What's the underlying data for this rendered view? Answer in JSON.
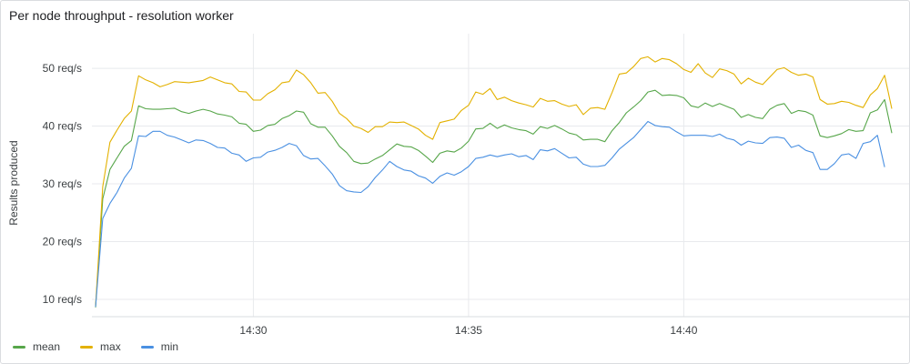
{
  "panel": {
    "title": "Per node throughput - resolution worker"
  },
  "chart_data": {
    "type": "line",
    "title": "Per node throughput - resolution worker",
    "xlabel": "",
    "ylabel": "Results produced",
    "x_ticks": [
      "14:30",
      "14:35",
      "14:40"
    ],
    "y_ticks": [
      "10 req/s",
      "20 req/s",
      "30 req/s",
      "40 req/s",
      "50 req/s"
    ],
    "y_tick_values": [
      10,
      20,
      30,
      40,
      50
    ],
    "ylim": [
      7,
      56
    ],
    "grid": true,
    "legend_position": "bottom-left",
    "sample_interval_seconds": 10,
    "start_time": "14:26:20",
    "series": [
      {
        "name": "mean",
        "color": "#57a64a",
        "values": [
          8.6,
          27.4,
          32.5,
          34.5,
          36.5,
          37.5,
          43.5,
          43.0,
          42.9,
          42.9,
          43.0,
          43.1,
          42.5,
          42.2,
          42.6,
          42.9,
          42.6,
          42.1,
          41.9,
          41.6,
          40.5,
          40.3,
          39.1,
          39.3,
          40.1,
          40.3,
          41.3,
          41.8,
          42.6,
          42.4,
          40.4,
          39.8,
          39.8,
          38.3,
          36.5,
          35.4,
          33.9,
          33.5,
          33.6,
          34.3,
          34.9,
          35.9,
          36.9,
          36.5,
          36.4,
          35.8,
          34.8,
          33.7,
          35.3,
          35.7,
          35.5,
          36.2,
          37.4,
          39.5,
          39.6,
          40.5,
          39.6,
          40.2,
          39.7,
          39.4,
          39.2,
          38.6,
          39.9,
          39.6,
          40.1,
          39.5,
          38.8,
          38.5,
          37.6,
          37.7,
          37.7,
          37.3,
          39.2,
          40.6,
          42.3,
          43.3,
          44.4,
          45.9,
          46.2,
          45.3,
          45.4,
          45.3,
          44.9,
          43.5,
          43.2,
          44.0,
          43.4,
          43.9,
          43.4,
          42.9,
          41.5,
          42.0,
          41.5,
          41.3,
          42.9,
          43.6,
          43.9,
          42.2,
          42.7,
          42.5,
          41.9,
          38.3,
          38.0,
          38.3,
          38.7,
          39.4,
          39.1,
          39.2,
          42.3,
          42.8,
          44.6,
          38.8
        ]
      },
      {
        "name": "max",
        "color": "#e3b100",
        "values": [
          8.8,
          29.5,
          37.2,
          39.3,
          41.3,
          42.6,
          48.7,
          48.0,
          47.5,
          46.8,
          47.2,
          47.7,
          47.6,
          47.5,
          47.7,
          47.9,
          48.5,
          48.0,
          47.5,
          47.3,
          46.0,
          45.9,
          44.5,
          44.5,
          45.6,
          46.3,
          47.5,
          47.7,
          49.7,
          48.9,
          47.5,
          45.7,
          45.8,
          44.3,
          42.2,
          41.3,
          40.0,
          39.6,
          38.9,
          39.9,
          39.9,
          40.7,
          40.6,
          40.7,
          40.1,
          39.5,
          38.4,
          37.7,
          40.6,
          40.9,
          41.2,
          42.7,
          43.6,
          45.9,
          45.5,
          46.5,
          44.6,
          45.0,
          44.4,
          44.0,
          43.7,
          43.3,
          44.8,
          44.3,
          44.4,
          43.8,
          43.4,
          43.7,
          42.0,
          43.1,
          43.2,
          42.9,
          45.8,
          49.0,
          49.2,
          50.3,
          51.7,
          52.0,
          51.1,
          51.7,
          51.5,
          50.8,
          49.8,
          49.3,
          50.8,
          49.2,
          48.4,
          49.9,
          49.6,
          49.0,
          47.3,
          48.3,
          47.6,
          47.2,
          48.5,
          49.8,
          50.1,
          49.3,
          48.8,
          49.0,
          48.5,
          44.6,
          43.8,
          43.9,
          44.3,
          44.1,
          43.6,
          43.2,
          45.4,
          46.5,
          48.8,
          43.0
        ]
      },
      {
        "name": "min",
        "color": "#4a90e2",
        "values": [
          8.7,
          24.0,
          26.6,
          28.5,
          31.0,
          32.7,
          38.3,
          38.2,
          39.1,
          39.1,
          38.4,
          38.1,
          37.6,
          37.1,
          37.6,
          37.5,
          37.0,
          36.3,
          36.2,
          35.3,
          35.0,
          33.9,
          34.5,
          34.6,
          35.5,
          35.8,
          36.3,
          37.0,
          36.6,
          34.9,
          34.3,
          34.4,
          33.1,
          31.7,
          29.7,
          28.8,
          28.6,
          28.5,
          29.5,
          31.1,
          32.4,
          33.9,
          33.0,
          32.4,
          32.2,
          31.4,
          31.0,
          30.1,
          31.3,
          31.9,
          31.5,
          32.1,
          33.0,
          34.4,
          34.6,
          35.0,
          34.7,
          35.0,
          35.2,
          34.7,
          34.9,
          34.2,
          35.9,
          35.7,
          36.1,
          35.3,
          34.5,
          34.6,
          33.4,
          33.0,
          33.0,
          33.2,
          34.5,
          36.0,
          37.0,
          38.0,
          39.4,
          40.8,
          40.1,
          39.9,
          39.8,
          39.0,
          38.3,
          38.4,
          38.4,
          38.4,
          38.2,
          38.6,
          37.9,
          37.6,
          36.7,
          37.4,
          37.1,
          37.0,
          38.0,
          38.1,
          37.9,
          36.3,
          36.7,
          35.8,
          35.4,
          32.5,
          32.5,
          33.5,
          35.0,
          35.2,
          34.4,
          37.0,
          37.3,
          38.4,
          32.9
        ]
      }
    ]
  }
}
